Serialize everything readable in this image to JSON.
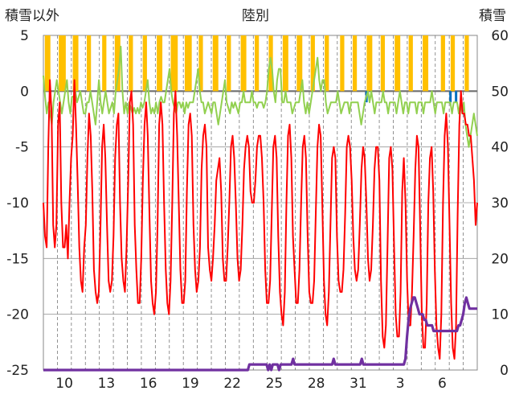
{
  "chart_data": {
    "type": "line",
    "title": "陸別",
    "left_axis_label": "積雪以外",
    "right_axis_label": "積雪",
    "left_ylim": [
      -25,
      5
    ],
    "left_yticks": [
      5,
      0,
      -5,
      -10,
      -15,
      -20,
      -25
    ],
    "right_ylim": [
      0,
      60
    ],
    "right_yticks": [
      60,
      50,
      40,
      30,
      20,
      10,
      0
    ],
    "x_range_days": [
      0,
      31
    ],
    "x_tick_labels": [
      "10",
      "13",
      "16",
      "19",
      "22",
      "25",
      "28",
      "31",
      "3",
      "6"
    ],
    "x_tick_positions": [
      1.5,
      4.5,
      7.5,
      10.5,
      13.5,
      16.5,
      19.5,
      22.5,
      25.5,
      28.5
    ],
    "grid": "dashed vertical daily",
    "series": [
      {
        "key": "temperature",
        "axis": "left",
        "color": "#ff0000",
        "values": [
          -10,
          -13,
          -14,
          -5,
          1,
          -2,
          -12,
          -14,
          -12,
          -3,
          -1,
          -10,
          -14,
          -14,
          -12,
          -15,
          -10,
          -6,
          -4,
          1,
          -3,
          -8,
          -14,
          -17,
          -18,
          -14,
          -12,
          -6,
          -2,
          -4,
          -9,
          -16,
          -18,
          -19,
          -18,
          -12,
          -5,
          -3,
          -6,
          -12,
          -17,
          -18,
          -17,
          -13,
          -6,
          -3,
          -2,
          -10,
          -15,
          -17,
          -18,
          -14,
          -8,
          -1,
          0,
          -3,
          -12,
          -16,
          -19,
          -19,
          -15,
          -8,
          -3,
          -1,
          -4,
          -11,
          -17,
          -19,
          -20,
          -18,
          -12,
          -3,
          -1,
          -3,
          -10,
          -16,
          -19,
          -20,
          -17,
          -10,
          -2,
          0,
          -4,
          -10,
          -16,
          -19,
          -19,
          -17,
          -9,
          -3,
          -2,
          -4,
          -12,
          -16,
          -18,
          -17,
          -14,
          -7,
          -4,
          -3,
          -5,
          -14,
          -16,
          -17,
          -15,
          -12,
          -8,
          -7,
          -6,
          -9,
          -15,
          -17,
          -17,
          -14,
          -10,
          -5,
          -4,
          -6,
          -10,
          -15,
          -17,
          -16,
          -12,
          -7,
          -5,
          -4,
          -5,
          -9,
          -10,
          -10,
          -8,
          -5,
          -4,
          -4,
          -6,
          -10,
          -16,
          -19,
          -19,
          -17,
          -11,
          -5,
          -4,
          -6,
          -13,
          -18,
          -20,
          -21,
          -18,
          -10,
          -4,
          -3,
          -6,
          -13,
          -16,
          -19,
          -19,
          -16,
          -10,
          -5,
          -4,
          -6,
          -13,
          -18,
          -19,
          -19,
          -17,
          -11,
          -5,
          -3,
          -4,
          -10,
          -17,
          -20,
          -21,
          -18,
          -12,
          -6,
          -5,
          -6,
          -13,
          -17,
          -18,
          -18,
          -16,
          -11,
          -5,
          -4,
          -5,
          -8,
          -13,
          -16,
          -17,
          -16,
          -12,
          -7,
          -5,
          -6,
          -10,
          -15,
          -17,
          -16,
          -12,
          -7,
          -5,
          -5,
          -8,
          -17,
          -22,
          -23,
          -21,
          -14,
          -6,
          -5,
          -7,
          -14,
          -20,
          -22,
          -22,
          -18,
          -9,
          -6,
          -10,
          -17,
          -21,
          -21,
          -18,
          -13,
          -7,
          -4,
          -5,
          -12,
          -20,
          -23,
          -23,
          -19,
          -10,
          -6,
          -5,
          -9,
          -16,
          -21,
          -23,
          -24,
          -20,
          -10,
          -4,
          -2,
          -5,
          -12,
          -19,
          -23,
          -24,
          -21,
          -11,
          -3,
          0,
          -2,
          -2,
          -3,
          -3,
          -4,
          -4,
          -6,
          -8,
          -12,
          -10
        ]
      },
      {
        "key": "wind",
        "axis": "left",
        "color": "#92d050",
        "values": [
          1.4,
          -0.5,
          -2,
          -1,
          -2,
          -3,
          -1,
          0,
          1,
          0,
          -1,
          -2,
          -1,
          0,
          1,
          -1,
          -2,
          -0.5,
          -0.5,
          0,
          -1,
          -0.5,
          0,
          -1,
          -2,
          -2,
          -1,
          -1,
          0,
          -1,
          -2,
          -3,
          -1,
          1,
          -1,
          -2,
          -1,
          0,
          -1,
          -2,
          -1.5,
          -1,
          -2,
          0,
          1,
          2,
          4,
          0,
          -2,
          -1,
          -2,
          -1,
          -1.5,
          -2,
          -1.5,
          -2,
          -1.5,
          -2,
          -1,
          -1.5,
          -1,
          0,
          1,
          -1,
          -2,
          -1.5,
          -2,
          -1,
          -2,
          -1,
          -0.5,
          -1,
          -1,
          0,
          1,
          2,
          0,
          -1,
          -1.5,
          -2,
          -1,
          -1,
          -1.5,
          -1,
          -2,
          -1,
          -1.5,
          -1,
          -1,
          -1,
          0,
          1,
          2,
          0,
          -1,
          -1,
          -2,
          -1.5,
          -1,
          -1.5,
          -2,
          -1,
          -1,
          -2,
          -3,
          -2,
          -1,
          0,
          1,
          -1,
          -1.5,
          -2,
          -1,
          -1.5,
          -1,
          -1.5,
          -2,
          -1,
          -1,
          0,
          -1,
          -1,
          -1,
          -1,
          0,
          -1,
          -1,
          -1.5,
          -1,
          -1,
          -1,
          -1.5,
          -1,
          0,
          2,
          3,
          2,
          0,
          -1,
          1,
          2,
          2,
          -1,
          -1,
          0,
          -1,
          -1,
          -1,
          -2,
          -1.5,
          -1,
          -1,
          -1,
          0,
          1,
          -1,
          -2,
          -1,
          -2,
          -1,
          0,
          1,
          2,
          3,
          1,
          0,
          1,
          1,
          -1,
          -2,
          -1.5,
          -1,
          -1,
          -1,
          -1,
          0,
          -1,
          -2,
          -1.5,
          -1,
          -1,
          -1,
          -2,
          -1,
          -1,
          -1,
          -1,
          -1,
          -2,
          -3,
          -2,
          -1,
          -0.5,
          0,
          -1,
          0,
          -1,
          -2,
          -1,
          -1,
          -1,
          -1,
          0,
          -1,
          -1,
          -2,
          -1,
          -1,
          -1,
          -1,
          -2,
          -1,
          0,
          -1,
          -2,
          -1,
          -1,
          -2,
          -1,
          -1,
          -1,
          -1,
          -2,
          -1,
          -1,
          -1,
          -2,
          -1,
          -1,
          -1,
          -1,
          0,
          -1,
          -2,
          -1,
          -1,
          -1,
          -1,
          -2,
          -1,
          -1,
          -1,
          -1,
          -2,
          -1,
          -1,
          -1,
          -2,
          -1,
          -2,
          -1,
          -3,
          -4,
          -5,
          -4,
          -3,
          -2,
          -3,
          -4
        ]
      },
      {
        "key": "snow_depth",
        "axis": "right",
        "color": "#7030a0",
        "values": [
          0,
          0,
          0,
          0,
          0,
          0,
          0,
          0,
          0,
          0,
          0,
          0,
          0,
          0,
          0,
          0,
          0,
          0,
          0,
          0,
          0,
          0,
          0,
          0,
          0,
          0,
          0,
          0,
          0,
          0,
          0,
          0,
          0,
          0,
          0,
          0,
          0,
          0,
          0,
          0,
          0,
          0,
          0,
          0,
          0,
          0,
          0,
          0,
          0,
          0,
          0,
          0,
          0,
          0,
          0,
          0,
          0,
          0,
          0,
          0,
          0,
          0,
          0,
          0,
          0,
          0,
          0,
          0,
          0,
          0,
          0,
          0,
          0,
          0,
          0,
          0,
          0,
          0,
          0,
          0,
          0,
          0,
          0,
          0,
          0,
          0,
          0,
          0,
          0,
          0,
          0,
          0,
          0,
          0,
          0,
          0,
          0,
          0,
          0,
          0,
          0,
          0,
          0,
          0,
          0,
          0,
          0,
          0,
          0,
          0,
          0,
          0,
          0,
          0,
          0,
          0,
          0,
          0,
          0,
          0,
          0,
          0,
          0,
          0,
          0,
          0,
          0,
          0,
          0,
          0,
          0,
          0,
          1,
          1,
          1,
          1,
          1,
          1,
          1,
          1,
          1,
          1,
          1,
          1,
          0,
          1,
          0,
          1,
          1,
          1,
          1,
          0,
          1,
          1,
          1,
          1,
          1,
          1,
          1,
          1,
          2,
          1,
          1,
          1,
          1,
          1,
          1,
          1,
          1,
          1,
          1,
          1,
          1,
          1,
          1,
          1,
          1,
          1,
          1,
          1,
          1,
          1,
          1,
          1,
          1,
          1,
          2,
          1,
          1,
          1,
          1,
          1,
          1,
          1,
          1,
          1,
          1,
          1,
          1,
          1,
          1,
          1,
          1,
          1,
          2,
          1,
          1,
          1,
          1,
          1,
          1,
          1,
          1,
          1,
          1,
          1,
          1,
          1,
          1,
          1,
          1,
          1,
          1,
          1,
          1,
          1,
          1,
          1,
          1,
          1,
          1,
          1,
          2,
          6,
          9,
          11,
          12,
          13,
          13,
          12,
          11,
          10,
          10,
          10,
          9,
          9,
          8,
          8,
          8,
          8,
          7,
          7,
          7,
          7,
          7,
          7,
          7,
          7,
          7,
          7,
          7,
          7,
          7,
          7,
          7,
          7,
          8,
          8,
          9,
          10,
          12,
          13,
          12,
          11,
          11,
          11,
          11,
          11,
          11
        ]
      },
      {
        "key": "precipitation",
        "axis": "left",
        "color": "#0070c0",
        "note": "small negative bars",
        "events": [
          [
            23.0,
            -1
          ],
          [
            29.0,
            -1
          ],
          [
            29.4,
            -1
          ]
        ]
      },
      {
        "key": "sunshine",
        "color": "#ffc000",
        "note": "vertical bars from top down to 0",
        "intervals": [
          [
            0.1,
            0.5
          ],
          [
            1.1,
            1.6
          ],
          [
            2.1,
            2.5
          ],
          [
            3.1,
            3.4
          ],
          [
            4.2,
            4.5
          ],
          [
            5.1,
            5.5
          ],
          [
            6.1,
            6.4
          ],
          [
            7.1,
            7.4
          ],
          [
            8.1,
            8.5
          ],
          [
            9.1,
            9.6
          ],
          [
            10.1,
            10.6
          ],
          [
            11.1,
            11.4
          ],
          [
            12.1,
            12.5
          ],
          [
            13.1,
            13.4
          ],
          [
            14.1,
            14.5
          ],
          [
            15.1,
            15.4
          ],
          [
            16.1,
            16.4
          ],
          [
            17.1,
            17.5
          ],
          [
            18.1,
            18.5
          ],
          [
            19.1,
            19.4
          ],
          [
            20.1,
            20.4
          ],
          [
            21.2,
            21.5
          ],
          [
            22.1,
            22.4
          ],
          [
            23.1,
            23.5
          ],
          [
            24.1,
            24.4
          ],
          [
            25.1,
            25.5
          ],
          [
            26.1,
            26.4
          ],
          [
            27.1,
            27.5
          ],
          [
            28.4,
            28.7
          ],
          [
            29.1,
            29.4
          ],
          [
            30.1,
            30.4
          ]
        ]
      }
    ]
  }
}
